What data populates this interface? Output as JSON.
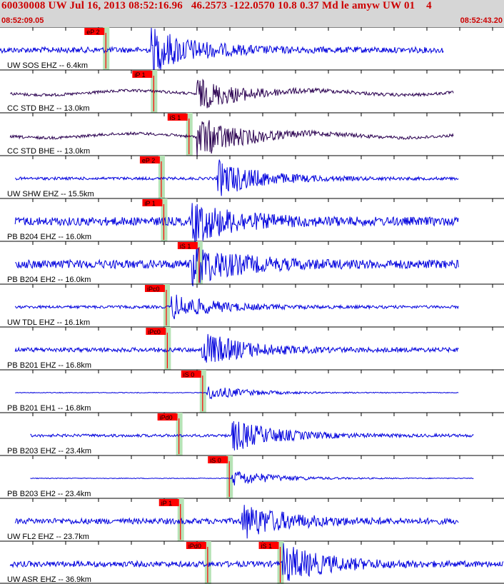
{
  "header": {
    "title": "60030008 UW Jul 16, 2013 08:52:16.96   46.2573 -122.0570 10.8 0.37 Md le amyw UW 01    4",
    "time_start": "08:52:09.05",
    "time_end": "08:52:43.20"
  },
  "colors": {
    "header_bg": "#d6d6d6",
    "text_red": "#cc0000",
    "pick_red": "#ff0000",
    "wave_blue": "#0000dd",
    "wave_purple": "#2a0050",
    "green_band": "#b6e3b6"
  },
  "traces": [
    {
      "label": "UW SOS EHZ -- 6.4km",
      "color": "blue",
      "picks": [
        {
          "label": "eP 2",
          "t": 0.22,
          "band": 0.21
        }
      ],
      "start": 0.0,
      "end": 0.88,
      "burst": 0.3,
      "amp": 30,
      "noise": 4
    },
    {
      "label": "CC STD BHZ -- 13.0km",
      "color": "purple",
      "picks": [
        {
          "label": "iP 1",
          "t": 0.285,
          "band": 0.305
        }
      ],
      "start": 0.02,
      "end": 0.9,
      "burst": 0.39,
      "amp": 22,
      "noise": 2
    },
    {
      "label": "CC STD BHE -- 13.0km",
      "color": "purple",
      "picks": [
        {
          "label": "iS 1",
          "t": 0.355,
          "band": 0.375
        }
      ],
      "start": 0.02,
      "end": 0.9,
      "burst": 0.39,
      "amp": 30,
      "noise": 2
    },
    {
      "label": "UW SHW EHZ -- 15.5km",
      "color": "blue",
      "picks": [
        {
          "label": "eP 2",
          "t": 0.3,
          "band": 0.32
        }
      ],
      "start": 0.03,
      "end": 0.91,
      "burst": 0.43,
      "amp": 26,
      "noise": 2
    },
    {
      "label": "PB B204 EHZ -- 16.0km",
      "color": "blue",
      "picks": [
        {
          "label": "iP 1",
          "t": 0.29,
          "band": 0.325
        }
      ],
      "start": 0.03,
      "end": 0.91,
      "burst": 0.38,
      "amp": 28,
      "noise": 6
    },
    {
      "label": "PB B204 EH2 -- 16.0km",
      "color": "blue",
      "picks": [
        {
          "label": "iS 1",
          "t": 0.368,
          "band": 0.395
        }
      ],
      "start": 0.03,
      "end": 0.91,
      "burst": 0.38,
      "amp": 28,
      "noise": 6
    },
    {
      "label": "UW TDL EHZ -- 16.1km",
      "color": "blue",
      "picks": [
        {
          "label": "iPc0",
          "t": 0.29,
          "band": 0.33
        }
      ],
      "start": 0.03,
      "end": 0.91,
      "burst": 0.34,
      "amp": 18,
      "noise": 2
    },
    {
      "label": "PB B201 EHZ -- 16.8km",
      "color": "blue",
      "picks": [
        {
          "label": "iPc0",
          "t": 0.292,
          "band": 0.332
        }
      ],
      "start": 0.03,
      "end": 0.91,
      "burst": 0.4,
      "amp": 24,
      "noise": 3
    },
    {
      "label": "PB B201 EH1 -- 16.8km",
      "color": "blue",
      "picks": [
        {
          "label": "iS 0",
          "t": 0.37,
          "band": 0.402
        }
      ],
      "start": 0.03,
      "end": 0.91,
      "burst": 0.41,
      "amp": 10,
      "noise": 0.5
    },
    {
      "label": "PB B203 EHZ -- 23.4km",
      "color": "blue",
      "picks": [
        {
          "label": "iPd0",
          "t": 0.325,
          "band": 0.355
        }
      ],
      "start": 0.06,
      "end": 0.94,
      "burst": 0.46,
      "amp": 22,
      "noise": 2
    },
    {
      "label": "PB B203 EH2 -- 23.4km",
      "color": "blue",
      "picks": [
        {
          "label": "iS 0",
          "t": 0.426,
          "band": 0.455
        }
      ],
      "start": 0.06,
      "end": 0.94,
      "burst": 0.46,
      "amp": 12,
      "noise": 0.5
    },
    {
      "label": "UW FL2 EHZ -- 23.7km",
      "color": "blue",
      "picks": [
        {
          "label": "iP 1",
          "t": 0.332,
          "band": 0.358
        }
      ],
      "start": 0.03,
      "end": 0.91,
      "burst": 0.48,
      "amp": 24,
      "noise": 4
    },
    {
      "label": "UW ASR EHZ -- 36.9km",
      "color": "blue",
      "picks": [
        {
          "label": "iPd0",
          "t": 0.382,
          "band": 0.412
        },
        {
          "label": "iS 1",
          "t": 0.532,
          "band": 0.556
        }
      ],
      "start": 0.02,
      "end": 1.0,
      "burst": 0.56,
      "amp": 26,
      "noise": 4
    }
  ]
}
